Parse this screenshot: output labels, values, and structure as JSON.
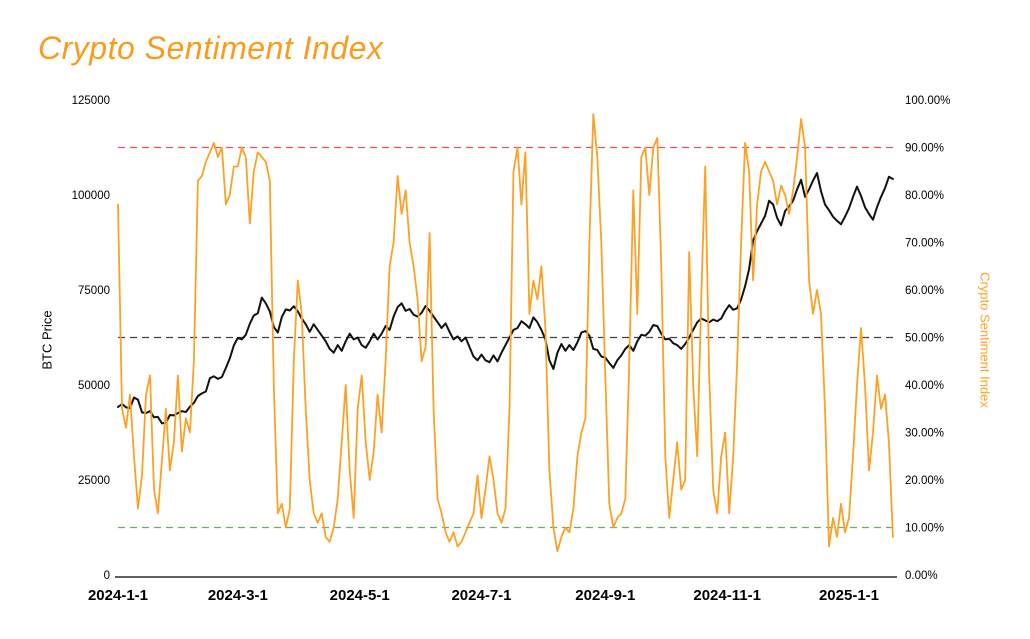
{
  "title": {
    "text": "Crypto Sentiment Index",
    "color": "#F99C1C"
  },
  "chart_data": {
    "type": "line",
    "title": "Crypto Sentiment Index",
    "grid": "off",
    "legend": "none",
    "left_axis": {
      "label": "BTC Price",
      "range": [
        0,
        125000
      ],
      "tick_values": [
        0,
        25000,
        50000,
        75000,
        100000,
        125000
      ],
      "tick_labels": [
        "0",
        "25000",
        "50000",
        "75000",
        "100000",
        "125000"
      ]
    },
    "right_axis": {
      "label": "Crypto Sentiment Index",
      "range": [
        0,
        100
      ],
      "tick_values": [
        0,
        10,
        20,
        30,
        40,
        50,
        60,
        70,
        80,
        90,
        100
      ],
      "tick_labels": [
        "0.00%",
        "10.00%",
        "20.00%",
        "30.00%",
        "40.00%",
        "50.00%",
        "60.00%",
        "70.00%",
        "80.00%",
        "90.00%",
        "100.00%"
      ]
    },
    "x_axis": {
      "start_date": "2024-1-1",
      "days_per_year": 366,
      "total_days": 388,
      "ticks": [
        {
          "label": "2024-1-1",
          "day": 0
        },
        {
          "label": "2024-3-1",
          "day": 60
        },
        {
          "label": "2024-5-1",
          "day": 121
        },
        {
          "label": "2024-7-1",
          "day": 182
        },
        {
          "label": "2024-9-1",
          "day": 244
        },
        {
          "label": "2024-11-1",
          "day": 305
        },
        {
          "label": "2025-1-1",
          "day": 366
        }
      ]
    },
    "reference_lines": [
      {
        "name": "greed-threshold",
        "axis": "right",
        "value": 90,
        "color": "#EF4C5F",
        "style": "dashed"
      },
      {
        "name": "neutral-line",
        "axis": "right",
        "value": 50,
        "color": "#404040",
        "style": "dashed"
      },
      {
        "name": "fear-threshold",
        "axis": "right",
        "value": 10,
        "color": "#67AD6C",
        "style": "dashed"
      }
    ],
    "series": [
      {
        "name": "BTC Price",
        "axis": "left",
        "color": "#111111",
        "stroke_width": 2,
        "day_start": 0,
        "day_step": 2,
        "values": [
          44200,
          45000,
          44100,
          43900,
          46700,
          46100,
          42800,
          42600,
          43100,
          41500,
          41600,
          39900,
          40100,
          42100,
          42000,
          42600,
          43100,
          42900,
          44300,
          45300,
          47100,
          47800,
          48300,
          51800,
          52300,
          51600,
          52100,
          54500,
          57000,
          60400,
          62400,
          62000,
          63200,
          66100,
          68300,
          68900,
          73000,
          71500,
          69400,
          65300,
          63800,
          67900,
          69900,
          69600,
          70700,
          69400,
          67500,
          66000,
          64000,
          66000,
          64500,
          63000,
          61500,
          59500,
          58500,
          60500,
          59000,
          61500,
          63500,
          62000,
          62500,
          60500,
          59800,
          61500,
          63500,
          62000,
          63500,
          65500,
          64500,
          68000,
          70500,
          71500,
          69500,
          70000,
          68500,
          68000,
          69000,
          70800,
          69500,
          68000,
          66500,
          65000,
          66200,
          64000,
          62000,
          62800,
          61500,
          62500,
          60000,
          57500,
          56500,
          58000,
          56500,
          56000,
          57800,
          56200,
          58500,
          60500,
          62500,
          64500,
          65000,
          66800,
          66000,
          65000,
          67800,
          66500,
          64500,
          62000,
          56500,
          54200,
          58500,
          60800,
          59000,
          60500,
          59200,
          61200,
          63800,
          64200,
          63000,
          59500,
          59200,
          57500,
          57200,
          55800,
          54500,
          56500,
          57800,
          59500,
          60500,
          59000,
          61500,
          63200,
          63000,
          64000,
          65800,
          65500,
          63500,
          62000,
          62200,
          61000,
          60500,
          59500,
          60800,
          62500,
          64500,
          66500,
          67500,
          67000,
          66500,
          67200,
          66800,
          67500,
          69500,
          71000,
          69800,
          70200,
          72500,
          76000,
          80500,
          88000,
          90500,
          92500,
          94500,
          98500,
          97500,
          94000,
          92000,
          95800,
          97000,
          98500,
          101500,
          104000,
          99500,
          101500,
          103800,
          105800,
          101000,
          97500,
          96000,
          94300,
          93200,
          92300,
          94300,
          96500,
          99500,
          102200,
          99800,
          96800,
          95000,
          93500,
          96800,
          99500,
          101800,
          104800,
          104200
        ]
      },
      {
        "name": "Crypto Sentiment Index",
        "axis": "right",
        "color": "#FBA226",
        "stroke_width": 1.8,
        "day_start": 0,
        "day_step": 2,
        "values": [
          78,
          35,
          31,
          38,
          25,
          14,
          21,
          38,
          42,
          18,
          13,
          24,
          35,
          22,
          28,
          42,
          26,
          33,
          30,
          45,
          83,
          84,
          87,
          89,
          91,
          88,
          90,
          78,
          80,
          86,
          86,
          90,
          88,
          74,
          85,
          89,
          88,
          87,
          83,
          40,
          13,
          15,
          10,
          14,
          45,
          62,
          55,
          35,
          20,
          13,
          11,
          13,
          8,
          7,
          10,
          16,
          28,
          40,
          22,
          12,
          35,
          42,
          28,
          20,
          26,
          38,
          30,
          45,
          65,
          70,
          84,
          76,
          81,
          70,
          65,
          58,
          45,
          48,
          72,
          35,
          16,
          13,
          9,
          7,
          9,
          6,
          7,
          9,
          11,
          13,
          21,
          12,
          18,
          25,
          20,
          13,
          11,
          14,
          35,
          85,
          90,
          78,
          89,
          55,
          62,
          58,
          65,
          52,
          22,
          10,
          5,
          8,
          10,
          9,
          14,
          25,
          30,
          33,
          70,
          97,
          88,
          70,
          42,
          15,
          10,
          12,
          13,
          16,
          45,
          81,
          55,
          88,
          90,
          80,
          90,
          92,
          65,
          25,
          12,
          20,
          28,
          18,
          20,
          68,
          40,
          25,
          58,
          86,
          42,
          18,
          13,
          25,
          30,
          13,
          25,
          45,
          70,
          91,
          85,
          62,
          78,
          85,
          87,
          85,
          83,
          78,
          82,
          80,
          76,
          81,
          88,
          96,
          90,
          62,
          55,
          60,
          55,
          35,
          6,
          12,
          8,
          15,
          9,
          12,
          25,
          40,
          52,
          40,
          22,
          30,
          42,
          35,
          38,
          28,
          8
        ]
      }
    ]
  }
}
